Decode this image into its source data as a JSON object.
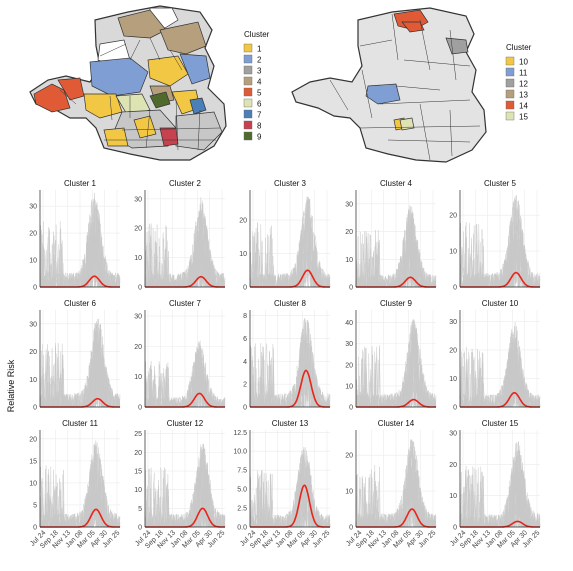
{
  "figure": {
    "y_axis_label": "Relative Risk"
  },
  "legends": [
    {
      "title": "Cluster",
      "items": [
        {
          "label": "1",
          "color": "#f2c744"
        },
        {
          "label": "2",
          "color": "#7f9fd4"
        },
        {
          "label": "3",
          "color": "#a0a0a0"
        },
        {
          "label": "4",
          "color": "#b59f7c"
        },
        {
          "label": "5",
          "color": "#e05a35"
        },
        {
          "label": "6",
          "color": "#dde3b2"
        },
        {
          "label": "7",
          "color": "#4a7fb8"
        },
        {
          "label": "8",
          "color": "#c5424e"
        },
        {
          "label": "9",
          "color": "#4f6a2c"
        }
      ]
    },
    {
      "title": "Cluster",
      "items": [
        {
          "label": "10",
          "color": "#f2c744"
        },
        {
          "label": "11",
          "color": "#7f9fd4"
        },
        {
          "label": "12",
          "color": "#a0a0a0"
        },
        {
          "label": "13",
          "color": "#b59f7c"
        },
        {
          "label": "14",
          "color": "#e05a35"
        },
        {
          "label": "15",
          "color": "#dde3b2"
        }
      ]
    }
  ],
  "chart_data": {
    "type": "line",
    "x_tick_labels": [
      "Jul 24",
      "Sep 18",
      "Nov 13",
      "Jan 08",
      "Mar 05",
      "Apr 30",
      "Jun 25"
    ],
    "series_colors": {
      "individual_series": "#c8c8c8",
      "cluster_mean": "#e8251b"
    },
    "panels": [
      {
        "title": "Cluster 1",
        "yticks": [
          "0",
          "10",
          "20",
          "30"
        ],
        "ylim": [
          0,
          36
        ],
        "peak": 4.0,
        "noise_max": 35
      },
      {
        "title": "Cluster 2",
        "yticks": [
          "0",
          "10",
          "20",
          "30"
        ],
        "ylim": [
          0,
          33
        ],
        "peak": 3.5,
        "noise_max": 31
      },
      {
        "title": "Cluster 3",
        "yticks": [
          "0",
          "10",
          "20"
        ],
        "ylim": [
          0,
          29
        ],
        "peak": 5.0,
        "noise_max": 28
      },
      {
        "title": "Cluster 4",
        "yticks": [
          "0",
          "10",
          "20",
          "30"
        ],
        "ylim": [
          0,
          35
        ],
        "peak": 3.5,
        "noise_max": 30
      },
      {
        "title": "Cluster 5",
        "yticks": [
          "0",
          "10",
          "20"
        ],
        "ylim": [
          0,
          27
        ],
        "peak": 4.0,
        "noise_max": 26
      },
      {
        "title": "Cluster 6",
        "yticks": [
          "0",
          "10",
          "20",
          "30"
        ],
        "ylim": [
          0,
          35
        ],
        "peak": 3.0,
        "noise_max": 33
      },
      {
        "title": "Cluster 7",
        "yticks": [
          "0",
          "10",
          "20",
          "30"
        ],
        "ylim": [
          0,
          32
        ],
        "peak": 4.5,
        "noise_max": 22
      },
      {
        "title": "Cluster 8",
        "yticks": [
          "0",
          "2",
          "4",
          "6",
          "8"
        ],
        "ylim": [
          0,
          8.5
        ],
        "peak": 3.2,
        "noise_max": 8
      },
      {
        "title": "Cluster 9",
        "yticks": [
          "0",
          "10",
          "20",
          "30",
          "40"
        ],
        "ylim": [
          0,
          46
        ],
        "peak": 3.5,
        "noise_max": 42
      },
      {
        "title": "Cluster 10",
        "yticks": [
          "0",
          "10",
          "20",
          "30"
        ],
        "ylim": [
          0,
          34
        ],
        "peak": 5.0,
        "noise_max": 30
      },
      {
        "title": "Cluster 11",
        "yticks": [
          "0",
          "5",
          "10",
          "15",
          "20"
        ],
        "ylim": [
          0,
          22
        ],
        "peak": 4.0,
        "noise_max": 20
      },
      {
        "title": "Cluster 12",
        "yticks": [
          "0",
          "5",
          "10",
          "15",
          "20",
          "25"
        ],
        "ylim": [
          0,
          26
        ],
        "peak": 5.0,
        "noise_max": 23
      },
      {
        "title": "Cluster 13",
        "yticks": [
          "0.0",
          "2.5",
          "5.0",
          "7.5",
          "10.0",
          "12.5"
        ],
        "ylim": [
          0,
          12.8
        ],
        "peak": 5.5,
        "noise_max": 11
      },
      {
        "title": "Cluster 14",
        "yticks": [
          "0",
          "10",
          "20"
        ],
        "ylim": [
          0,
          27
        ],
        "peak": 5.0,
        "noise_max": 25
      },
      {
        "title": "Cluster 15",
        "yticks": [
          "0",
          "10",
          "20",
          "30"
        ],
        "ylim": [
          0,
          31
        ],
        "peak": 1.8,
        "noise_max": 28
      }
    ]
  }
}
